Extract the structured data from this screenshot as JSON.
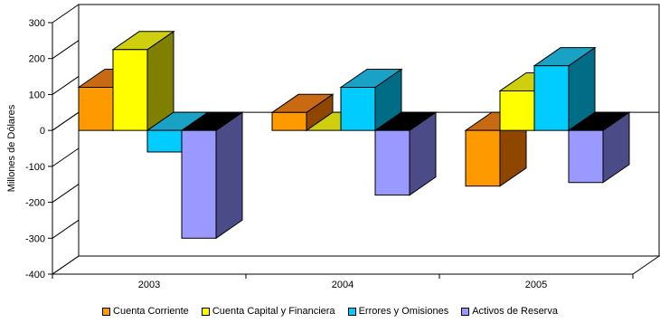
{
  "chart_data": {
    "type": "bar",
    "title": "",
    "xlabel": "",
    "ylabel": "Millones de Dólares",
    "ylim": [
      -400,
      300
    ],
    "yticks": [
      "300",
      "200",
      "100",
      "0",
      "-100",
      "-200",
      "-300",
      "-400"
    ],
    "categories": [
      "2003",
      "2004",
      "2005"
    ],
    "legend_position": "bottom",
    "style": "3d-clustered-column",
    "series": [
      {
        "name": "Cuenta Corriente",
        "values": [
          120,
          50,
          -155
        ],
        "color": "#FF9900",
        "side_color": "#8F4700",
        "top_color": "#C86A14"
      },
      {
        "name": "Cuenta Capital y Financiera",
        "values": [
          225,
          0,
          110
        ],
        "color": "#FFFF00",
        "side_color": "#7F7F00",
        "top_color": "#CFCF10"
      },
      {
        "name": "Errores y Omisiones",
        "values": [
          -60,
          120,
          180
        ],
        "color": "#00CCFF",
        "side_color": "#006C86",
        "top_color": "#1AA2C6"
      },
      {
        "name": "Activos de Reserva",
        "values": [
          -300,
          -180,
          -145
        ],
        "color": "#9999FF",
        "side_color": "#4B4B87",
        "top_color": "#000000"
      }
    ]
  }
}
